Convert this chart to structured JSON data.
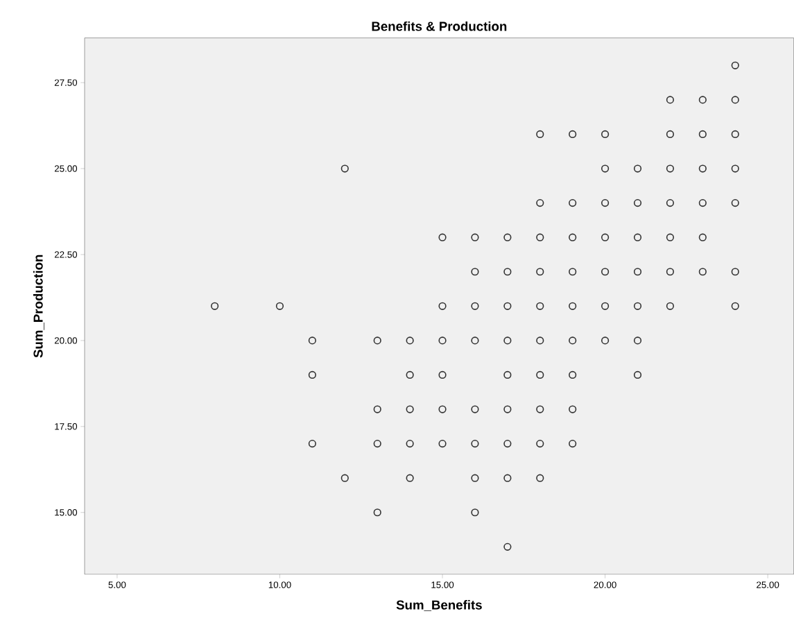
{
  "chart_data": {
    "type": "scatter",
    "title": "Benefits & Production",
    "xlabel": "Sum_Benefits",
    "ylabel": "Sum_Production",
    "xlim": [
      4.0,
      25.8
    ],
    "ylim": [
      13.2,
      28.8
    ],
    "xticks": [
      {
        "value": 5,
        "label": "5.00"
      },
      {
        "value": 10,
        "label": "10.00"
      },
      {
        "value": 15,
        "label": "15.00"
      },
      {
        "value": 20,
        "label": "20.00"
      },
      {
        "value": 25,
        "label": "25.00"
      }
    ],
    "yticks": [
      {
        "value": 15,
        "label": "15.00"
      },
      {
        "value": 17.5,
        "label": "17.50"
      },
      {
        "value": 20,
        "label": "20.00"
      },
      {
        "value": 22.5,
        "label": "22.50"
      },
      {
        "value": 25,
        "label": "25.00"
      },
      {
        "value": 27.5,
        "label": "27.50"
      }
    ],
    "marker": "circle",
    "series": [
      {
        "color": "#333333",
        "x": [
          24,
          22,
          23,
          24,
          18,
          19,
          20,
          22,
          23,
          24,
          12,
          20,
          21,
          22,
          23,
          24,
          18,
          19,
          20,
          21,
          22,
          23,
          24,
          15,
          16,
          17,
          18,
          19,
          20,
          21,
          22,
          23,
          16,
          17,
          18,
          19,
          20,
          21,
          22,
          23,
          24,
          8,
          10,
          15,
          16,
          17,
          18,
          19,
          20,
          21,
          22,
          24,
          11,
          13,
          14,
          15,
          16,
          17,
          18,
          19,
          20,
          21,
          11,
          14,
          15,
          17,
          18,
          19,
          21,
          13,
          14,
          15,
          16,
          17,
          18,
          19,
          11,
          13,
          14,
          15,
          16,
          17,
          18,
          19,
          12,
          14,
          16,
          17,
          18,
          13,
          16,
          17
        ],
        "values": [
          28,
          27,
          27,
          27,
          26,
          26,
          26,
          26,
          26,
          26,
          25,
          25,
          25,
          25,
          25,
          25,
          24,
          24,
          24,
          24,
          24,
          24,
          24,
          23,
          23,
          23,
          23,
          23,
          23,
          23,
          23,
          23,
          22,
          22,
          22,
          22,
          22,
          22,
          22,
          22,
          22,
          21,
          21,
          21,
          21,
          21,
          21,
          21,
          21,
          21,
          21,
          21,
          20,
          20,
          20,
          20,
          20,
          20,
          20,
          20,
          20,
          20,
          19,
          19,
          19,
          19,
          19,
          19,
          19,
          18,
          18,
          18,
          18,
          18,
          18,
          18,
          17,
          17,
          17,
          17,
          17,
          17,
          17,
          17,
          16,
          16,
          16,
          16,
          16,
          15,
          15,
          14
        ]
      }
    ]
  }
}
